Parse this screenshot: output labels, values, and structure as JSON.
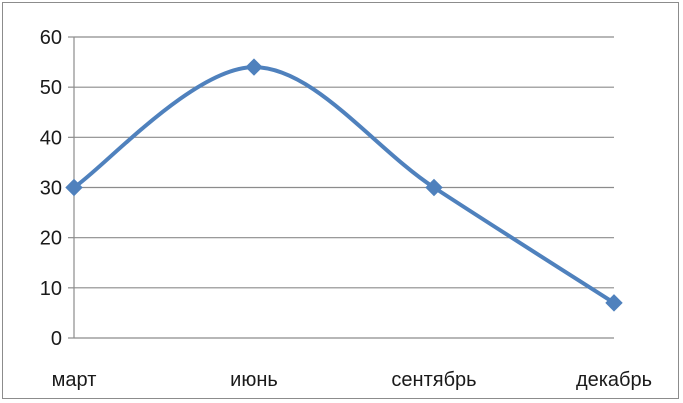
{
  "chart_data": {
    "type": "line",
    "categories": [
      "март",
      "июнь",
      "сентябрь",
      "декабрь"
    ],
    "series": [
      {
        "values": [
          30,
          54,
          30,
          7
        ],
        "color": "#4f81bd",
        "smooth": true,
        "marker": "diamond"
      }
    ],
    "ylim": [
      0,
      60
    ],
    "yticks": [
      0,
      10,
      20,
      30,
      40,
      50,
      60
    ],
    "grid": true,
    "legend": "none"
  }
}
